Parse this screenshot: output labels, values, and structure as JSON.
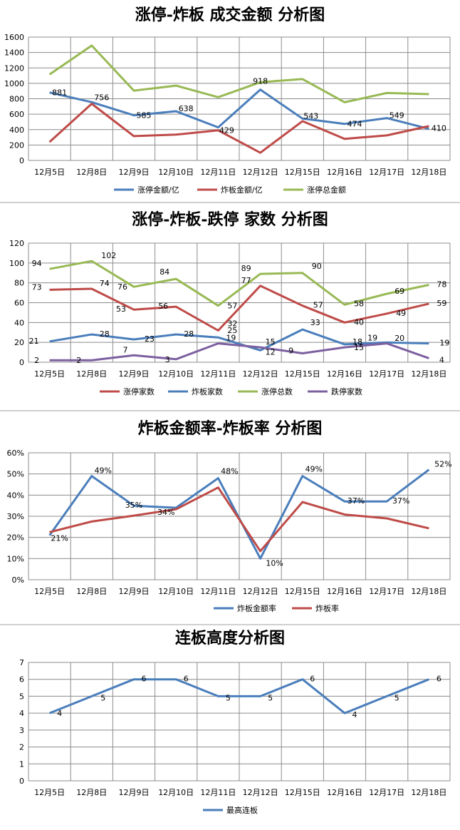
{
  "colors": {
    "blue": "#4a7ebb",
    "red": "#be4b48",
    "green": "#98b954",
    "purple": "#7d60a0",
    "grid": "#8c8c8c"
  },
  "chart_data": [
    {
      "type": "line",
      "title": "涨停-炸板 成交金额 分析图",
      "categories": [
        "12月5日",
        "12月8日",
        "12月9日",
        "12月10日",
        "12月11日",
        "12月12日",
        "12月15日",
        "12月16日",
        "12月17日",
        "12月18日"
      ],
      "ylim": [
        0,
        1600
      ],
      "yticks": [
        "0",
        "200",
        "400",
        "600",
        "800",
        "1000",
        "1200",
        "1400",
        "1600"
      ],
      "legend_position": "bottom",
      "grid": true,
      "series": [
        {
          "name": "涨停金额/亿",
          "color": "blue",
          "values": [
            881,
            756,
            585,
            638,
            429,
            918,
            543,
            474,
            549,
            410
          ],
          "labels": [
            "881",
            "756",
            "585",
            "638",
            "429",
            "918",
            "543",
            "474",
            "549",
            "410"
          ]
        },
        {
          "name": "炸板金额/亿",
          "color": "red",
          "values": [
            240,
            735,
            315,
            335,
            390,
            100,
            510,
            280,
            325,
            445
          ]
        },
        {
          "name": "涨停总金额",
          "color": "green",
          "values": [
            1115,
            1490,
            905,
            970,
            820,
            1015,
            1055,
            755,
            875,
            860
          ]
        }
      ]
    },
    {
      "type": "line",
      "title": "涨停-炸板-跌停 家数 分析图",
      "categories": [
        "12月5日",
        "12月8日",
        "12月9日",
        "12月10日",
        "12月11日",
        "12月12日",
        "12月15日",
        "12月16日",
        "12月17日",
        "12月18日"
      ],
      "ylim": [
        0,
        120
      ],
      "yticks": [
        "0",
        "20",
        "40",
        "60",
        "80",
        "100",
        "120"
      ],
      "legend_position": "bottom",
      "grid": true,
      "series": [
        {
          "name": "涨停家数",
          "color": "red",
          "values": [
            73,
            74,
            53,
            56,
            32,
            77,
            57,
            40,
            49,
            59
          ],
          "labels": [
            "73",
            "74",
            "53",
            "56",
            "32",
            "77",
            "57",
            "40",
            "49",
            "59"
          ]
        },
        {
          "name": "炸板家数",
          "color": "blue",
          "values": [
            21,
            28,
            23,
            28,
            25,
            12,
            33,
            18,
            20,
            19
          ],
          "labels": [
            "21",
            "28",
            "23",
            "28",
            "25",
            "12",
            "33",
            "18",
            "20",
            "19"
          ]
        },
        {
          "name": "涨停总数",
          "color": "green",
          "values": [
            94,
            102,
            76,
            84,
            57,
            89,
            90,
            58,
            69,
            78
          ],
          "labels": [
            "94",
            "102",
            "76",
            "84",
            "57",
            "89",
            "90",
            "58",
            "69",
            "78"
          ]
        },
        {
          "name": "跌停家数",
          "color": "purple",
          "values": [
            2,
            2,
            7,
            3,
            19,
            15,
            9,
            15,
            19,
            4
          ],
          "labels": [
            "2",
            "2",
            "7",
            "3",
            "19",
            "15",
            "9",
            "15",
            "19",
            "4"
          ]
        }
      ]
    },
    {
      "type": "line",
      "title": "炸板金额率-炸板率 分析图",
      "categories": [
        "12月5日",
        "12月8日",
        "12月9日",
        "12月10日",
        "12月11日",
        "12月12日",
        "12月15日",
        "12月16日",
        "12月17日",
        "12月18日"
      ],
      "ylim": [
        0,
        60
      ],
      "yticks": [
        "0%",
        "10%",
        "20%",
        "30%",
        "40%",
        "50%",
        "60%"
      ],
      "legend_position": "bottom",
      "grid": true,
      "series": [
        {
          "name": "炸板金额率",
          "color": "blue",
          "values": [
            21,
            49,
            35,
            34,
            48,
            10,
            49,
            37,
            37,
            52
          ],
          "labels": [
            "21%",
            "49%",
            "35%",
            "34%",
            "48%",
            "10%",
            "49%",
            "37%",
            "37%",
            "52%"
          ]
        },
        {
          "name": "炸板率",
          "color": "red",
          "values": [
            22.5,
            27.5,
            30.3,
            33.3,
            43.6,
            13.5,
            36.7,
            30.8,
            29,
            24.3
          ]
        }
      ]
    },
    {
      "type": "line",
      "title": "连板高度分析图",
      "categories": [
        "12月5日",
        "12月8日",
        "12月9日",
        "12月10日",
        "12月11日",
        "12月12日",
        "12月15日",
        "12月16日",
        "12月17日",
        "12月18日"
      ],
      "ylim": [
        0,
        7
      ],
      "yticks": [
        "0",
        "1",
        "2",
        "3",
        "4",
        "5",
        "6",
        "7"
      ],
      "legend_position": "bottom",
      "grid": true,
      "series": [
        {
          "name": "最高连板",
          "color": "blue",
          "values": [
            4,
            5,
            6,
            6,
            5,
            5,
            6,
            4,
            5,
            6
          ],
          "labels": [
            "4",
            "5",
            "6",
            "6",
            "5",
            "5",
            "6",
            "4",
            "5",
            "6"
          ]
        }
      ]
    }
  ]
}
